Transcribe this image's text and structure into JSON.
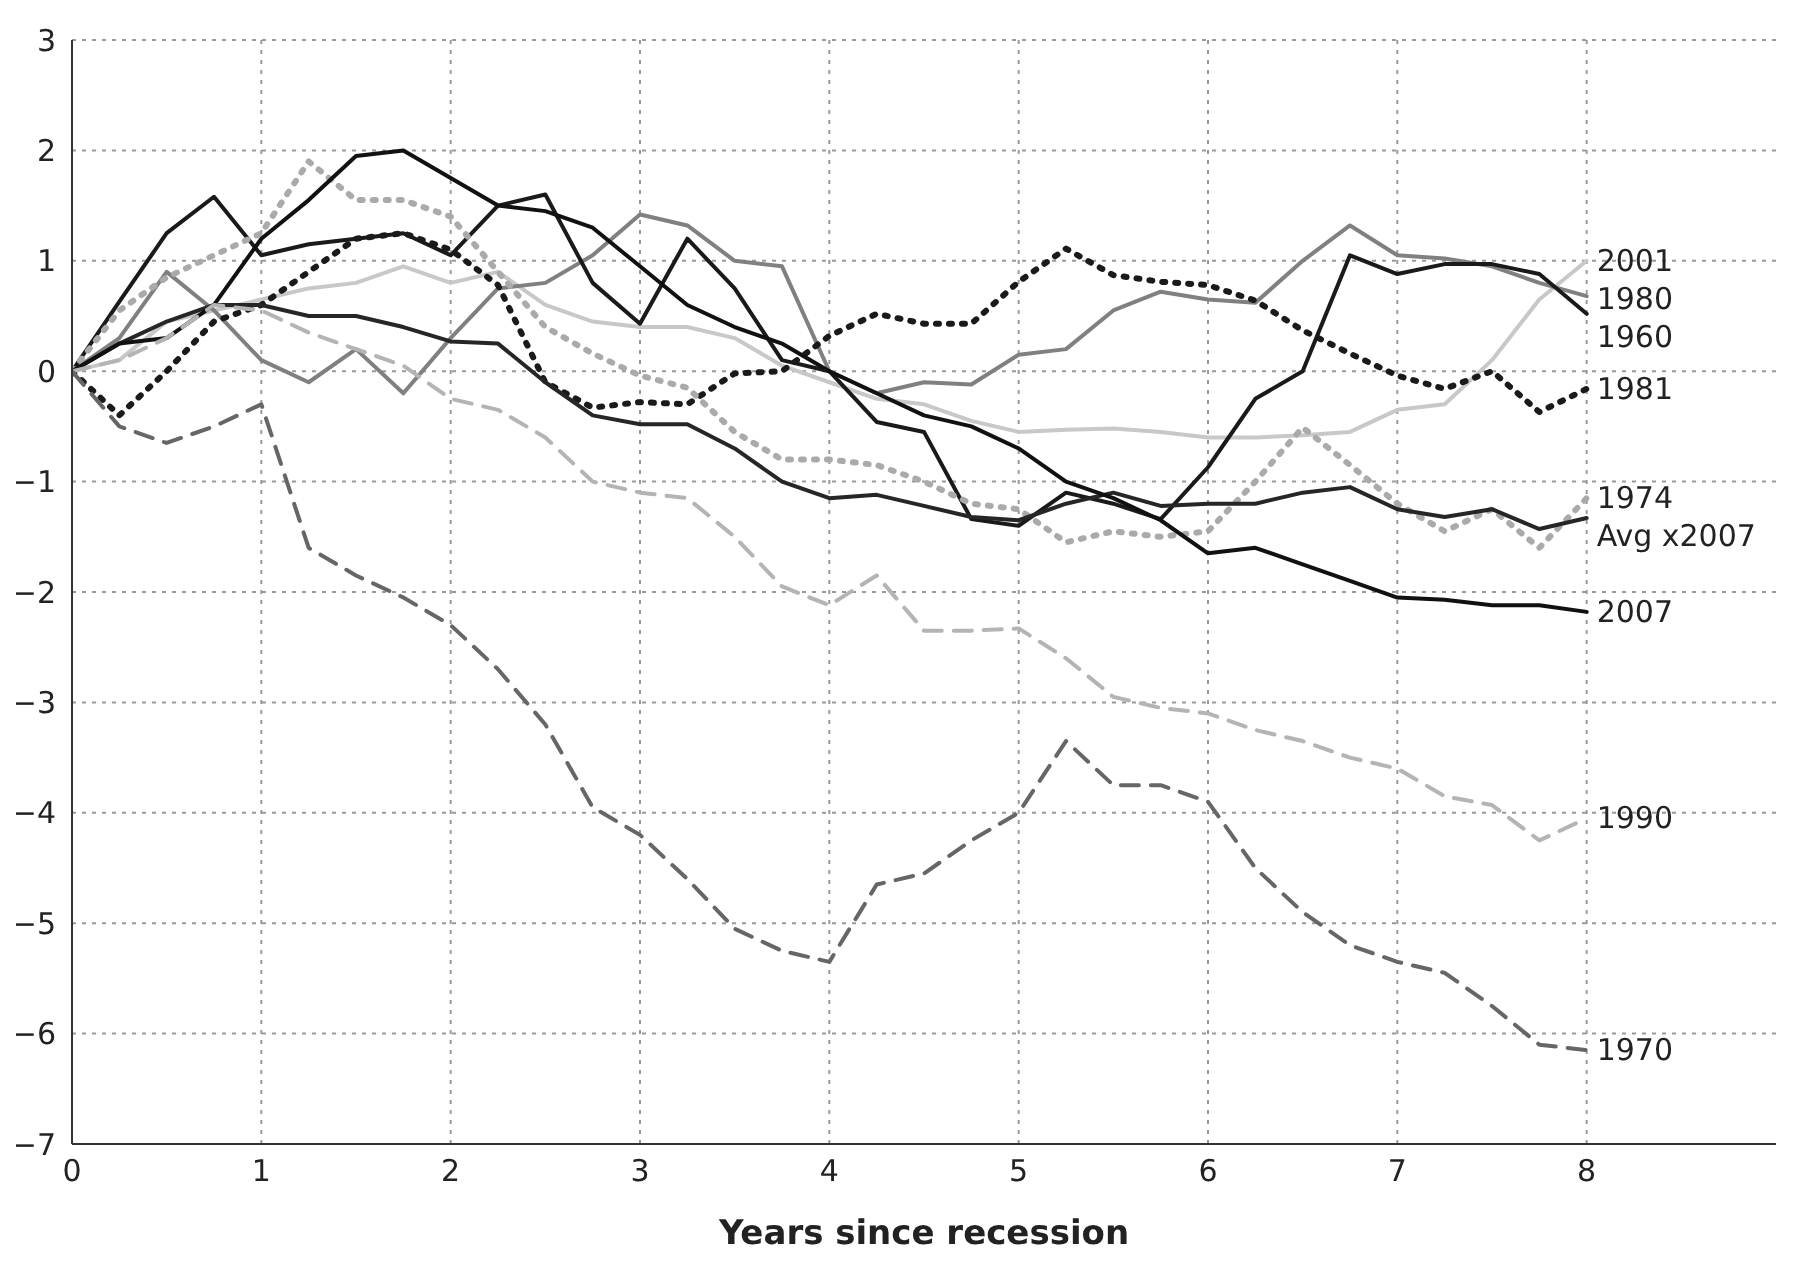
{
  "chart_data": {
    "type": "line",
    "xlabel": "Years since recession",
    "x": [
      0,
      0.25,
      0.5,
      0.75,
      1,
      1.25,
      1.5,
      1.75,
      2,
      2.25,
      2.5,
      2.75,
      3,
      3.25,
      3.5,
      3.75,
      4,
      4.25,
      4.5,
      4.75,
      5,
      5.25,
      5.5,
      5.75,
      6,
      6.25,
      6.5,
      6.75,
      7,
      7.25,
      7.5,
      7.75,
      8
    ],
    "xlim": [
      0,
      9
    ],
    "xticks": [
      0,
      1,
      2,
      3,
      4,
      5,
      6,
      7,
      8
    ],
    "ylim": [
      -7,
      3
    ],
    "yticks": [
      {
        "value": -7,
        "label": "−7"
      },
      {
        "value": -6,
        "label": "−6"
      },
      {
        "value": -5,
        "label": "−5"
      },
      {
        "value": -4,
        "label": "−4"
      },
      {
        "value": -3,
        "label": "−3"
      },
      {
        "value": -2,
        "label": "−2"
      },
      {
        "value": -1,
        "label": "−1"
      },
      0,
      1,
      2,
      3
    ],
    "grid": true,
    "line_style": "solid",
    "series": [
      {
        "name": "2001",
        "color": "#c8c8c8",
        "values": [
          0,
          0.1,
          0.45,
          0.55,
          0.65,
          0.75,
          0.8,
          0.95,
          0.8,
          0.9,
          0.6,
          0.45,
          0.4,
          0.4,
          0.3,
          0.05,
          -0.1,
          -0.25,
          -0.3,
          -0.45,
          -0.55,
          -0.53,
          -0.52,
          -0.55,
          -0.6,
          -0.6,
          -0.58,
          -0.55,
          -0.35,
          -0.3,
          0.1,
          0.65,
          1.0
        ]
      },
      {
        "name": "1980",
        "color": "#808080",
        "values": [
          0,
          0.3,
          0.9,
          0.55,
          0.1,
          -0.1,
          0.2,
          -0.2,
          0.3,
          0.75,
          0.8,
          1.05,
          1.42,
          1.32,
          1.0,
          0.95,
          0.0,
          -0.2,
          -0.1,
          -0.12,
          0.15,
          0.2,
          0.55,
          0.72,
          0.65,
          0.62,
          1.0,
          1.32,
          1.05,
          1.02,
          0.95,
          0.8,
          0.68
        ]
      },
      {
        "name": "1960",
        "color": "#1a1a1a",
        "values": [
          0,
          0.63,
          1.25,
          1.58,
          1.05,
          1.15,
          1.2,
          1.25,
          1.05,
          1.5,
          1.6,
          0.8,
          0.43,
          1.2,
          0.75,
          0.1,
          0.0,
          -0.46,
          -0.55,
          -1.34,
          -1.4,
          -1.1,
          -1.2,
          -1.34,
          -0.87,
          -0.25,
          0.0,
          1.05,
          0.88,
          0.97,
          0.97,
          0.88,
          0.52
        ]
      },
      {
        "name": "1981",
        "color": "#1a1a1a",
        "line_style": "dotted",
        "values": [
          0,
          -0.4,
          0.0,
          0.45,
          0.6,
          0.9,
          1.2,
          1.25,
          1.1,
          0.78,
          -0.1,
          -0.33,
          -0.28,
          -0.3,
          -0.02,
          0.0,
          0.32,
          0.52,
          0.43,
          0.43,
          0.81,
          1.11,
          0.87,
          0.81,
          0.78,
          0.64,
          0.37,
          0.16,
          -0.04,
          -0.16,
          0.0,
          -0.37,
          -0.16
        ]
      },
      {
        "name": "1974",
        "color": "#aaaaaa",
        "line_style": "dotted",
        "values": [
          0,
          0.55,
          0.85,
          1.05,
          1.25,
          1.9,
          1.55,
          1.55,
          1.4,
          0.9,
          0.4,
          0.16,
          -0.04,
          -0.15,
          -0.55,
          -0.8,
          -0.8,
          -0.85,
          -1.0,
          -1.2,
          -1.25,
          -1.55,
          -1.45,
          -1.5,
          -1.45,
          -1.0,
          -0.51,
          -0.85,
          -1.2,
          -1.45,
          -1.25,
          -1.6,
          -1.15
        ]
      },
      {
        "name": "Avg x2007",
        "color": "#262626",
        "values": [
          0,
          0.25,
          0.45,
          0.6,
          0.6,
          0.5,
          0.5,
          0.4,
          0.27,
          0.25,
          -0.1,
          -0.4,
          -0.48,
          -0.48,
          -0.7,
          -1.0,
          -1.15,
          -1.12,
          -1.22,
          -1.32,
          -1.35,
          -1.2,
          -1.1,
          -1.22,
          -1.2,
          -1.2,
          -1.1,
          -1.05,
          -1.25,
          -1.32,
          -1.25,
          -1.43,
          -1.33
        ]
      },
      {
        "name": "2007",
        "color": "#111111",
        "values": [
          0,
          0.25,
          0.3,
          0.6,
          1.2,
          1.55,
          1.95,
          2.0,
          1.75,
          1.5,
          1.45,
          1.3,
          0.95,
          0.6,
          0.4,
          0.25,
          0,
          -0.2,
          -0.4,
          -0.5,
          -0.7,
          -1.0,
          -1.15,
          -1.35,
          -1.65,
          -1.6,
          -1.75,
          -1.9,
          -2.05,
          -2.07,
          -2.12,
          -2.12,
          -2.18
        ]
      },
      {
        "name": "1990",
        "color": "#b4b4b4",
        "line_style": "dashed",
        "values": [
          0,
          0.1,
          0.3,
          0.6,
          0.55,
          0.35,
          0.2,
          0.05,
          -0.25,
          -0.35,
          -0.6,
          -1.0,
          -1.1,
          -1.15,
          -1.5,
          -1.95,
          -2.12,
          -1.85,
          -2.35,
          -2.35,
          -2.33,
          -2.6,
          -2.95,
          -3.05,
          -3.1,
          -3.25,
          -3.35,
          -3.5,
          -3.6,
          -3.85,
          -3.93,
          -4.25,
          -4.05
        ]
      },
      {
        "name": "1970",
        "color": "#666666",
        "line_style": "dashed",
        "values": [
          0,
          -0.5,
          -0.65,
          -0.5,
          -0.3,
          -1.6,
          -1.85,
          -2.05,
          -2.3,
          -2.7,
          -3.2,
          -3.95,
          -4.2,
          -4.6,
          -5.05,
          -5.25,
          -5.35,
          -4.65,
          -4.55,
          -4.25,
          -4.0,
          -3.35,
          -3.75,
          -3.75,
          -3.9,
          -4.5,
          -4.9,
          -5.2,
          -5.35,
          -5.45,
          -5.75,
          -6.1,
          -6.15
        ]
      }
    ]
  }
}
